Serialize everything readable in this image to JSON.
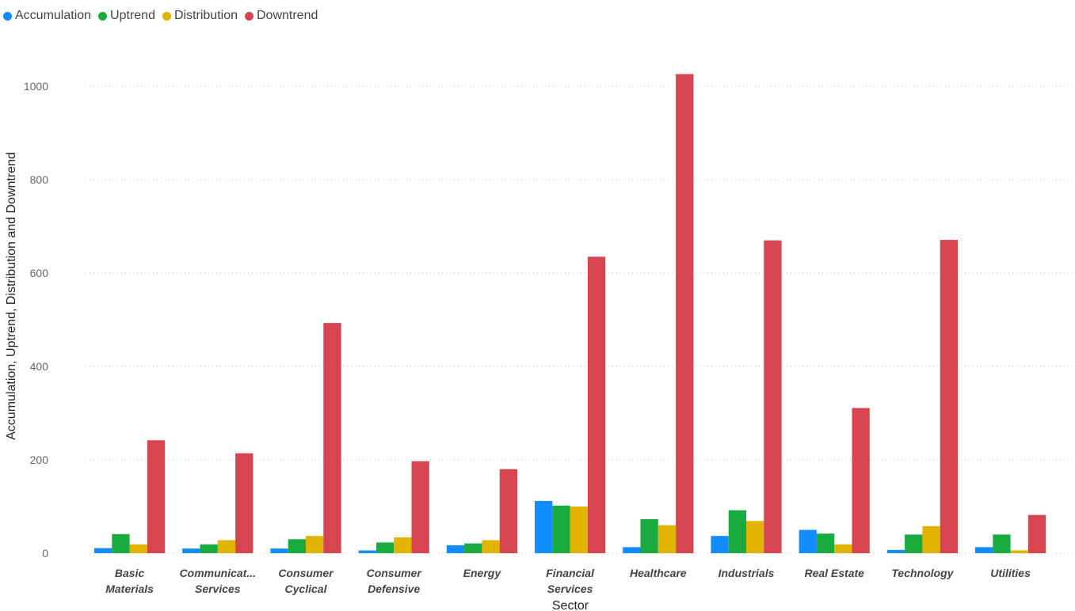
{
  "chart_data": {
    "type": "bar",
    "xlabel": "Sector",
    "ylabel": "Accumulation, Uptrend, Distribution and Downtrend",
    "ylim": [
      0,
      1080
    ],
    "yticks": [
      0,
      200,
      400,
      600,
      800,
      1000
    ],
    "grid": true,
    "legend_position": "top-left",
    "categories": [
      [
        "Basic",
        "Materials"
      ],
      [
        "Communicat...",
        "Services"
      ],
      [
        "Consumer",
        "Cyclical"
      ],
      [
        "Consumer",
        "Defensive"
      ],
      [
        "Energy"
      ],
      [
        "Financial",
        "Services"
      ],
      [
        "Healthcare"
      ],
      [
        "Industrials"
      ],
      [
        "Real Estate"
      ],
      [
        "Technology"
      ],
      [
        "Utilities"
      ]
    ],
    "series": [
      {
        "name": "Accumulation",
        "color": "#118DFF",
        "values": [
          11,
          10,
          10,
          6,
          17,
          112,
          13,
          37,
          50,
          7,
          13
        ]
      },
      {
        "name": "Uptrend",
        "color": "#1AAB40",
        "values": [
          41,
          19,
          30,
          23,
          21,
          102,
          73,
          92,
          42,
          40,
          40
        ]
      },
      {
        "name": "Distribution",
        "color": "#E0B400",
        "values": [
          19,
          28,
          37,
          34,
          28,
          100,
          60,
          69,
          19,
          58,
          6
        ]
      },
      {
        "name": "Downtrend",
        "color": "#D64550",
        "values": [
          242,
          214,
          493,
          197,
          180,
          635,
          1026,
          670,
          311,
          671,
          82
        ]
      }
    ]
  }
}
